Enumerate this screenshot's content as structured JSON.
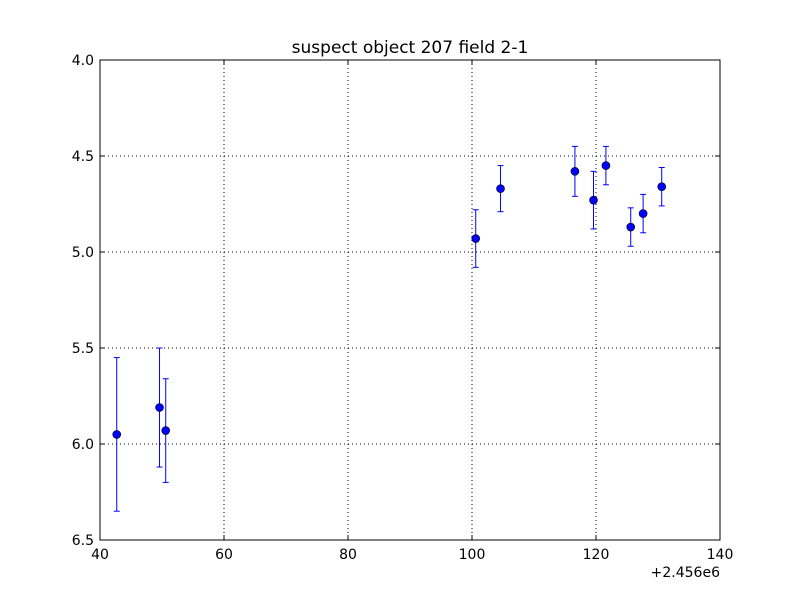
{
  "chart_data": {
    "type": "scatter",
    "title": "suspect object 207 field 2-1",
    "xlabel": "",
    "ylabel": "",
    "xlim": [
      2456040,
      2456140
    ],
    "ylim": [
      6.5,
      4.0
    ],
    "y_inverted": true,
    "x_offset_label": "+2.456e6",
    "x_ticks": [
      2456040,
      2456060,
      2456080,
      2456100,
      2456120,
      2456140
    ],
    "x_tick_labels": [
      "40",
      "60",
      "80",
      "100",
      "120",
      "140"
    ],
    "y_ticks": [
      4.0,
      4.5,
      5.0,
      5.5,
      6.0,
      6.5
    ],
    "y_tick_labels": [
      "4.0",
      "4.5",
      "5.0",
      "5.5",
      "6.0",
      "6.5"
    ],
    "grid": true,
    "marker_color": "#0000ff",
    "series": [
      {
        "marker": "circle",
        "error_bars": true,
        "points": [
          {
            "x": 2456042.7,
            "y": 5.95,
            "yerr": 0.4
          },
          {
            "x": 2456049.6,
            "y": 5.81,
            "yerr": 0.31
          },
          {
            "x": 2456050.6,
            "y": 5.93,
            "yerr": 0.27
          },
          {
            "x": 2456100.6,
            "y": 4.93,
            "yerr": 0.15
          },
          {
            "x": 2456104.6,
            "y": 4.67,
            "yerr": 0.12
          },
          {
            "x": 2456116.6,
            "y": 4.58,
            "yerr": 0.13
          },
          {
            "x": 2456119.6,
            "y": 4.73,
            "yerr": 0.15
          },
          {
            "x": 2456121.6,
            "y": 4.55,
            "yerr": 0.1
          },
          {
            "x": 2456125.6,
            "y": 4.87,
            "yerr": 0.1
          },
          {
            "x": 2456127.6,
            "y": 4.8,
            "yerr": 0.1
          },
          {
            "x": 2456130.6,
            "y": 4.66,
            "yerr": 0.1
          }
        ]
      }
    ]
  }
}
